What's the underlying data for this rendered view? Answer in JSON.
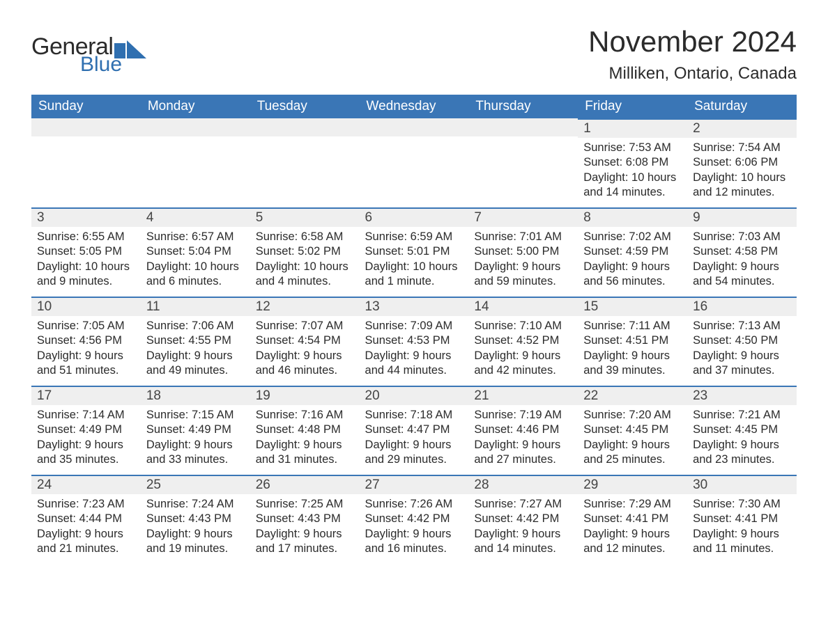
{
  "brand": {
    "part1": "General",
    "part2": "Blue",
    "flag_color": "#2f6fb0"
  },
  "title": "November 2024",
  "location": "Milliken, Ontario, Canada",
  "colors": {
    "header_bg": "#3a76b6",
    "header_text": "#ffffff",
    "daynum_bg": "#efefef",
    "row_border": "#3a76b6",
    "body_text": "#2b2b2b"
  },
  "weekdays": [
    "Sunday",
    "Monday",
    "Tuesday",
    "Wednesday",
    "Thursday",
    "Friday",
    "Saturday"
  ],
  "leading_blanks": 5,
  "days": [
    {
      "n": 1,
      "sunrise": "7:53 AM",
      "sunset": "6:08 PM",
      "daylight": "10 hours and 14 minutes."
    },
    {
      "n": 2,
      "sunrise": "7:54 AM",
      "sunset": "6:06 PM",
      "daylight": "10 hours and 12 minutes."
    },
    {
      "n": 3,
      "sunrise": "6:55 AM",
      "sunset": "5:05 PM",
      "daylight": "10 hours and 9 minutes."
    },
    {
      "n": 4,
      "sunrise": "6:57 AM",
      "sunset": "5:04 PM",
      "daylight": "10 hours and 6 minutes."
    },
    {
      "n": 5,
      "sunrise": "6:58 AM",
      "sunset": "5:02 PM",
      "daylight": "10 hours and 4 minutes."
    },
    {
      "n": 6,
      "sunrise": "6:59 AM",
      "sunset": "5:01 PM",
      "daylight": "10 hours and 1 minute."
    },
    {
      "n": 7,
      "sunrise": "7:01 AM",
      "sunset": "5:00 PM",
      "daylight": "9 hours and 59 minutes."
    },
    {
      "n": 8,
      "sunrise": "7:02 AM",
      "sunset": "4:59 PM",
      "daylight": "9 hours and 56 minutes."
    },
    {
      "n": 9,
      "sunrise": "7:03 AM",
      "sunset": "4:58 PM",
      "daylight": "9 hours and 54 minutes."
    },
    {
      "n": 10,
      "sunrise": "7:05 AM",
      "sunset": "4:56 PM",
      "daylight": "9 hours and 51 minutes."
    },
    {
      "n": 11,
      "sunrise": "7:06 AM",
      "sunset": "4:55 PM",
      "daylight": "9 hours and 49 minutes."
    },
    {
      "n": 12,
      "sunrise": "7:07 AM",
      "sunset": "4:54 PM",
      "daylight": "9 hours and 46 minutes."
    },
    {
      "n": 13,
      "sunrise": "7:09 AM",
      "sunset": "4:53 PM",
      "daylight": "9 hours and 44 minutes."
    },
    {
      "n": 14,
      "sunrise": "7:10 AM",
      "sunset": "4:52 PM",
      "daylight": "9 hours and 42 minutes."
    },
    {
      "n": 15,
      "sunrise": "7:11 AM",
      "sunset": "4:51 PM",
      "daylight": "9 hours and 39 minutes."
    },
    {
      "n": 16,
      "sunrise": "7:13 AM",
      "sunset": "4:50 PM",
      "daylight": "9 hours and 37 minutes."
    },
    {
      "n": 17,
      "sunrise": "7:14 AM",
      "sunset": "4:49 PM",
      "daylight": "9 hours and 35 minutes."
    },
    {
      "n": 18,
      "sunrise": "7:15 AM",
      "sunset": "4:49 PM",
      "daylight": "9 hours and 33 minutes."
    },
    {
      "n": 19,
      "sunrise": "7:16 AM",
      "sunset": "4:48 PM",
      "daylight": "9 hours and 31 minutes."
    },
    {
      "n": 20,
      "sunrise": "7:18 AM",
      "sunset": "4:47 PM",
      "daylight": "9 hours and 29 minutes."
    },
    {
      "n": 21,
      "sunrise": "7:19 AM",
      "sunset": "4:46 PM",
      "daylight": "9 hours and 27 minutes."
    },
    {
      "n": 22,
      "sunrise": "7:20 AM",
      "sunset": "4:45 PM",
      "daylight": "9 hours and 25 minutes."
    },
    {
      "n": 23,
      "sunrise": "7:21 AM",
      "sunset": "4:45 PM",
      "daylight": "9 hours and 23 minutes."
    },
    {
      "n": 24,
      "sunrise": "7:23 AM",
      "sunset": "4:44 PM",
      "daylight": "9 hours and 21 minutes."
    },
    {
      "n": 25,
      "sunrise": "7:24 AM",
      "sunset": "4:43 PM",
      "daylight": "9 hours and 19 minutes."
    },
    {
      "n": 26,
      "sunrise": "7:25 AM",
      "sunset": "4:43 PM",
      "daylight": "9 hours and 17 minutes."
    },
    {
      "n": 27,
      "sunrise": "7:26 AM",
      "sunset": "4:42 PM",
      "daylight": "9 hours and 16 minutes."
    },
    {
      "n": 28,
      "sunrise": "7:27 AM",
      "sunset": "4:42 PM",
      "daylight": "9 hours and 14 minutes."
    },
    {
      "n": 29,
      "sunrise": "7:29 AM",
      "sunset": "4:41 PM",
      "daylight": "9 hours and 12 minutes."
    },
    {
      "n": 30,
      "sunrise": "7:30 AM",
      "sunset": "4:41 PM",
      "daylight": "9 hours and 11 minutes."
    }
  ],
  "labels": {
    "sunrise": "Sunrise:",
    "sunset": "Sunset:",
    "daylight": "Daylight:"
  }
}
